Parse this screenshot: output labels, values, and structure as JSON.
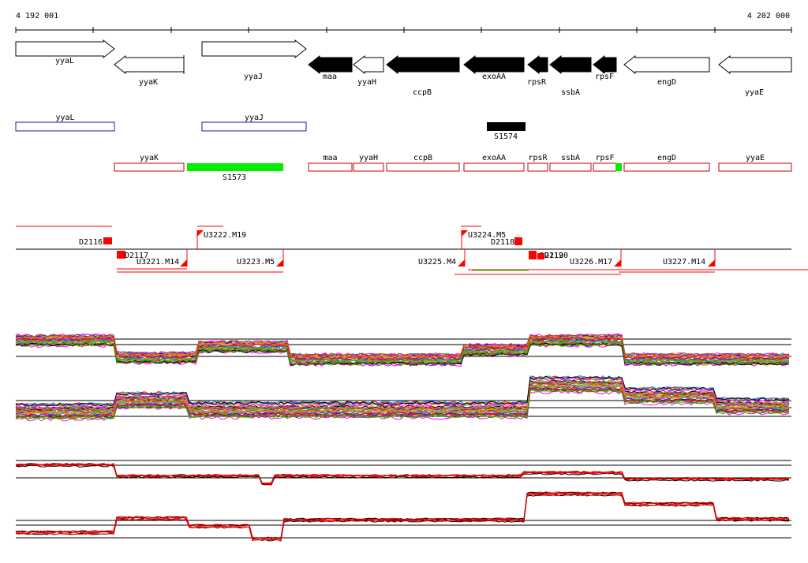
{
  "ruler": {
    "start_label": "4 192 001",
    "end_label": "4 202 000"
  },
  "genes": [
    {
      "name": "yyaL",
      "strand": "+",
      "filled": false
    },
    {
      "name": "yyaK",
      "strand": "-",
      "filled": false
    },
    {
      "name": "yyaJ",
      "strand": "+",
      "filled": false
    },
    {
      "name": "maa",
      "strand": "-",
      "filled": true
    },
    {
      "name": "yyaH",
      "strand": "-",
      "filled": false
    },
    {
      "name": "ccpB",
      "strand": "-",
      "filled": true
    },
    {
      "name": "exoAA",
      "strand": "-",
      "filled": true
    },
    {
      "name": "rpsR",
      "strand": "-",
      "filled": true
    },
    {
      "name": "ssbA",
      "strand": "-",
      "filled": true
    },
    {
      "name": "rpsF",
      "strand": "-",
      "filled": true
    },
    {
      "name": "engD",
      "strand": "-",
      "filled": false
    },
    {
      "name": "yyaE",
      "strand": "-",
      "filled": false
    }
  ],
  "forward_track": {
    "boxes": [
      {
        "name": "yyaL"
      },
      {
        "name": "yyaJ"
      }
    ],
    "features": [
      {
        "name": "S1574"
      }
    ]
  },
  "reverse_track": {
    "boxes": [
      {
        "name": "yyaK"
      },
      {
        "name": "maa"
      },
      {
        "name": "yyaH"
      },
      {
        "name": "ccpB"
      },
      {
        "name": "exoAA"
      },
      {
        "name": "rpsR"
      },
      {
        "name": "ssbA"
      },
      {
        "name": "rpsF"
      },
      {
        "name": "engD"
      },
      {
        "name": "yyaE"
      }
    ],
    "features": [
      {
        "name": "S1573"
      }
    ]
  },
  "promoters": [
    {
      "name": "D2116"
    },
    {
      "name": "D2117"
    },
    {
      "name": "U3221.M14"
    },
    {
      "name": "U3222.M19"
    },
    {
      "name": "U3223.M5"
    },
    {
      "name": "U3224.M5"
    },
    {
      "name": "D2118"
    },
    {
      "name": "D2119"
    },
    {
      "name": "D2120"
    },
    {
      "name": "U3225.M4"
    },
    {
      "name": "U3226.M17"
    },
    {
      "name": "U3227.M14"
    }
  ],
  "colors": {
    "forward_box": "#1a1aa8",
    "reverse_box": "#cc0000",
    "feature_green": "#00ee00",
    "promoter_red": "#ff0000",
    "tiling_black": "#000000",
    "tiling_red": "#ee0000"
  }
}
